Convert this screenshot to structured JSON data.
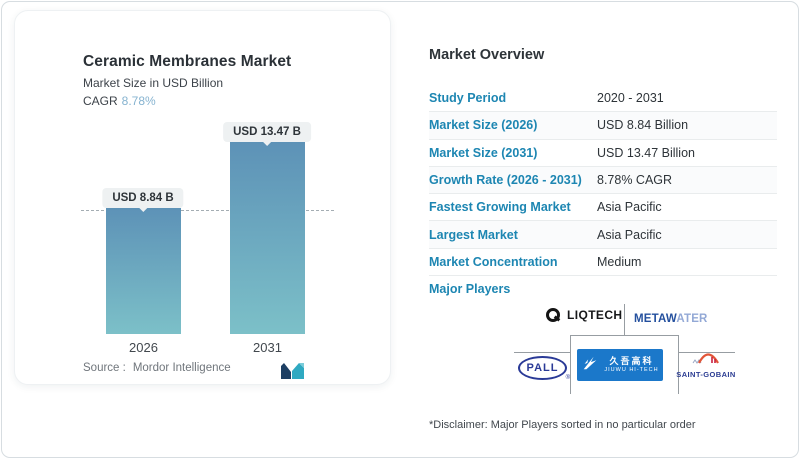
{
  "chart_card": {
    "title": "Ceramic Membranes Market",
    "subtitle": "Market Size in USD Billion",
    "cagr_label": "CAGR",
    "cagr_value": "8.78%",
    "source_label": "Source :",
    "source_value": "Mordor Intelligence"
  },
  "chart_data": {
    "type": "bar",
    "title": "Ceramic Membranes Market",
    "ylabel": "Market Size in USD Billion",
    "categories": [
      "2026",
      "2031"
    ],
    "values": [
      8.84,
      13.47
    ],
    "bar_labels": [
      "USD 8.84 B",
      "USD 13.47 B"
    ],
    "unit": "USD Billion",
    "reference_line": 8.84,
    "ylim": [
      0,
      14.5
    ],
    "grid": false,
    "legend": false,
    "bar_color_top": "#5d92b7",
    "bar_color_bottom": "#7cc0c8"
  },
  "overview": {
    "heading": "Market Overview",
    "rows": [
      {
        "label": "Study Period",
        "value": "2020 - 2031"
      },
      {
        "label": "Market Size (2026)",
        "value": "USD 8.84 Billion"
      },
      {
        "label": "Market Size (2031)",
        "value": "USD 13.47 Billion"
      },
      {
        "label": "Growth Rate (2026 - 2031)",
        "value": "8.78% CAGR"
      },
      {
        "label": "Fastest Growing Market",
        "value": "Asia Pacific"
      },
      {
        "label": "Largest Market",
        "value": "Asia Pacific"
      },
      {
        "label": "Market Concentration",
        "value": "Medium"
      }
    ],
    "major_players_label": "Major Players",
    "players": {
      "liqtech": "LIQTECH",
      "metawater_dark": "METAW",
      "metawater_light": "ATER",
      "pall": "PALL",
      "pall_reg": "®",
      "jiuwu_cn": "久吾高科",
      "jiuwu_en": "JIUWU HI-TECH",
      "saint_gobain": "SAINT-GOBAIN"
    },
    "disclaimer": "*Disclaimer: Major Players sorted in no particular order"
  },
  "colors": {
    "accent_blue": "#1d86b2",
    "cagr_light_blue": "#86b3d0",
    "mordor_navy": "#1d3f63",
    "mordor_teal": "#2fa9c1"
  }
}
